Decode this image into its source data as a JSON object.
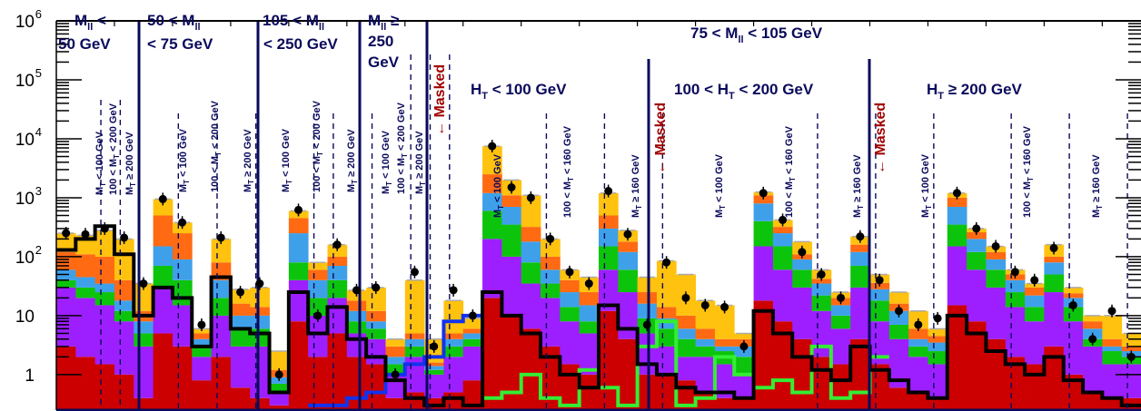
{
  "colors": {
    "red": "#cc0000",
    "purple": "#9d1fff",
    "green": "#0dc40d",
    "blue": "#3fa0ea",
    "orange": "#ff6a13",
    "yellow": "#ffc20e",
    "navy": "#0a0a5c",
    "signal_blue": "#1133ee",
    "signal_green": "#33ee33",
    "masked": "#a00000"
  },
  "axis": {
    "yticks": [
      "1",
      "10",
      "10",
      "10",
      "10",
      "10",
      "10"
    ],
    "ysup": [
      "",
      "",
      "2",
      "3",
      "4",
      "5",
      "6"
    ]
  },
  "regions": {
    "r1": [
      "M",
      "ll",
      " <",
      "50 GeV"
    ],
    "r2": [
      "50 < M",
      "ll",
      "< 75 GeV"
    ],
    "r3": [
      "105 < M",
      "ll",
      "< 250 GeV"
    ],
    "r4": [
      "M",
      "ll",
      " ≥",
      "250",
      "GeV"
    ],
    "r5": [
      "75 < M",
      "ll",
      " < 105 GeV"
    ],
    "ht1": [
      "H",
      "T",
      " < 100 GeV"
    ],
    "ht2": [
      "100 < H",
      "T",
      " < 200 GeV"
    ],
    "ht3": [
      "H",
      "T",
      " ≥ 200 GeV"
    ]
  },
  "masked": [
    "← Masked",
    "← Masked",
    "← Masked"
  ],
  "mt_labels": {
    "a": [
      "M",
      "T",
      " < 100 GeV"
    ],
    "b": [
      "100 < M",
      "T",
      " < 200 GeV"
    ],
    "c": [
      "M",
      "T",
      " ≥ 200 GeV"
    ],
    "d": [
      "100 < M",
      "T",
      " < 160 GeV"
    ],
    "e": [
      "M",
      "T",
      " ≥ 160 GeV"
    ]
  },
  "chart_data": {
    "type": "bar",
    "yscale": "log",
    "ylim": [
      0.25,
      1000000
    ],
    "n_bins": 56,
    "stack_order": [
      "red",
      "purple",
      "green",
      "blue",
      "orange",
      "yellow"
    ],
    "bins": [
      {
        "s": [
          3,
          30,
          40,
          60,
          120,
          250
        ],
        "d": 250,
        "k": 130
      },
      {
        "s": [
          2,
          20,
          30,
          45,
          110,
          230
        ],
        "d": 240,
        "k": 200
      },
      {
        "s": [
          1.5,
          15,
          25,
          35,
          100,
          280
        ],
        "d": 300,
        "k": 330
      },
      {
        "s": [
          1,
          8,
          12,
          18,
          40,
          200
        ],
        "d": 210,
        "k": 110
      },
      {
        "s": [
          0.4,
          3,
          5,
          8,
          12,
          35
        ],
        "d": 35,
        "k": 10
      },
      {
        "s": [
          5,
          30,
          70,
          150,
          500,
          950
        ],
        "d": 950,
        "k": 30
      },
      {
        "s": [
          3,
          15,
          40,
          90,
          250,
          380
        ],
        "d": 380,
        "k": 20
      },
      {
        "s": [
          0.8,
          2,
          3,
          4,
          5,
          6
        ],
        "d": 7,
        "k": 3
      },
      {
        "s": [
          2,
          10,
          20,
          40,
          80,
          200
        ],
        "d": 210,
        "k": 45
      },
      {
        "s": [
          0.6,
          3,
          6,
          10,
          16,
          28
        ],
        "d": 25,
        "k": 6
      },
      {
        "s": [
          0.4,
          3,
          6,
          10,
          14,
          30
        ],
        "d": 35,
        "k": 5
      },
      {
        "s": [
          0.3,
          0.5,
          0.7,
          0.9,
          1.2,
          2.5
        ],
        "d": 1,
        "k": 0.5
      },
      {
        "s": [
          8,
          40,
          80,
          250,
          450,
          600
        ],
        "d": 620,
        "k": 25
      },
      {
        "s": [
          2,
          10,
          20,
          40,
          60,
          80
        ],
        "d": 10,
        "k": 5
      },
      {
        "s": [
          5,
          20,
          40,
          70,
          100,
          160
        ],
        "d": 160,
        "k": 14
      },
      {
        "s": [
          2,
          5,
          8,
          12,
          18,
          27
        ],
        "d": 27,
        "k": 4
      },
      {
        "s": [
          1.5,
          4,
          6,
          8,
          12,
          30
        ],
        "d": 30,
        "k": 2
      },
      {
        "s": [
          0.4,
          1,
          1.5,
          2,
          3,
          4
        ],
        "d": 1,
        "k": 0.8
      },
      {
        "s": [
          0.5,
          2,
          3,
          4,
          5,
          40
        ],
        "d": 55,
        "k": 0.4
      },
      {
        "s": [
          0.4,
          1,
          1.2,
          1.4,
          1.6,
          4
        ],
        "d": 3,
        "k": 0.3
      },
      {
        "s": [
          0.5,
          2,
          3,
          4,
          5,
          18
        ],
        "d": 27,
        "k": 0.4
      },
      {
        "s": [
          0.8,
          3,
          4,
          5,
          6,
          9
        ],
        "d": 10,
        "k": 0.3
      },
      {
        "s": [
          20,
          200,
          600,
          1200,
          2500,
          7500
        ],
        "d": 7500,
        "k": 25
      },
      {
        "s": [
          10,
          100,
          350,
          700,
          1100,
          2000
        ],
        "d": 1500,
        "k": 10
      },
      {
        "s": [
          6,
          35,
          80,
          180,
          320,
          1100
        ],
        "d": 1000,
        "k": 5
      },
      {
        "s": [
          3,
          20,
          35,
          60,
          100,
          200
        ],
        "d": 200,
        "k": 2
      },
      {
        "s": [
          1.5,
          8,
          14,
          25,
          40,
          60
        ],
        "d": 55,
        "k": 1
      },
      {
        "s": [
          1,
          5,
          8,
          15,
          25,
          45
        ],
        "d": 35,
        "k": 0.6
      },
      {
        "s": [
          12,
          60,
          150,
          300,
          500,
          1200
        ],
        "d": 1300,
        "k": 15
      },
      {
        "s": [
          4,
          25,
          60,
          120,
          180,
          280
        ],
        "d": 240,
        "k": 6
      },
      {
        "s": [
          1,
          5,
          9,
          16,
          25,
          45
        ],
        "d": 7,
        "k": 1.5
      },
      {
        "s": [
          1,
          3,
          6,
          9,
          14,
          85
        ],
        "d": 80,
        "k": 1
      },
      {
        "s": [
          0.8,
          2,
          4,
          6,
          10,
          50
        ],
        "d": 20,
        "k": 0.6
      },
      {
        "s": [
          0.5,
          2,
          3,
          4,
          6,
          18
        ],
        "d": 15,
        "k": 0.5
      },
      {
        "s": [
          0.4,
          1.5,
          2.5,
          3,
          4,
          15
        ],
        "d": 14,
        "k": 0.5
      },
      {
        "s": [
          0.4,
          1,
          2,
          3,
          4,
          5
        ],
        "d": 3,
        "k": 0.4
      },
      {
        "s": [
          18,
          150,
          400,
          800,
          1100,
          1250
        ],
        "d": 1200,
        "k": 12
      },
      {
        "s": [
          8,
          60,
          150,
          250,
          320,
          420
        ],
        "d": 420,
        "k": 5
      },
      {
        "s": [
          4,
          30,
          60,
          90,
          110,
          180
        ],
        "d": 120,
        "k": 2
      },
      {
        "s": [
          2,
          12,
          22,
          35,
          42,
          60
        ],
        "d": 50,
        "k": 1.2
      },
      {
        "s": [
          1.5,
          6,
          10,
          15,
          20,
          25
        ],
        "d": 20,
        "k": 0.8
      },
      {
        "s": [
          4,
          30,
          70,
          120,
          160,
          220
        ],
        "d": 220,
        "k": 3
      },
      {
        "s": [
          1.5,
          8,
          18,
          28,
          36,
          50
        ],
        "d": 40,
        "k": 1.2
      },
      {
        "s": [
          0.6,
          4,
          7,
          12,
          16,
          25
        ],
        "d": 12,
        "k": 0.8
      },
      {
        "s": [
          0.5,
          2,
          3,
          4,
          6,
          12
        ],
        "d": 7,
        "k": 0.5
      },
      {
        "s": [
          0.4,
          1.5,
          2.5,
          3.5,
          4.5,
          6
        ],
        "d": 9,
        "k": 0.4
      },
      {
        "s": [
          15,
          150,
          350,
          700,
          1000,
          1200
        ],
        "d": 1200,
        "k": 10
      },
      {
        "s": [
          8,
          60,
          120,
          200,
          260,
          300
        ],
        "d": 300,
        "k": 5
      },
      {
        "s": [
          4,
          30,
          60,
          90,
          120,
          150
        ],
        "d": 150,
        "k": 2.5
      },
      {
        "s": [
          2,
          14,
          25,
          40,
          50,
          60
        ],
        "d": 55,
        "k": 1.5
      },
      {
        "s": [
          1.5,
          8,
          14,
          22,
          30,
          35
        ],
        "d": 40,
        "k": 1
      },
      {
        "s": [
          3,
          25,
          50,
          80,
          100,
          160
        ],
        "d": 140,
        "k": 2
      },
      {
        "s": [
          1,
          8,
          14,
          20,
          24,
          30
        ],
        "d": 15,
        "k": 0.8
      },
      {
        "s": [
          0.5,
          3,
          4,
          6,
          8,
          10
        ],
        "d": 4,
        "k": 0.5
      },
      {
        "s": [
          0.4,
          1.5,
          2.5,
          3,
          4,
          10
        ],
        "d": 12,
        "k": 0.4
      },
      {
        "s": [
          0.4,
          1.5,
          2,
          2.5,
          3,
          5
        ],
        "d": 2,
        "k": 0.3
      }
    ],
    "signal_blue": [
      0.3,
      0.3,
      0.4,
      0.5,
      1,
      1.5,
      2,
      8,
      10
    ],
    "signal_green": [
      0.4,
      0.5,
      1,
      0.4,
      0.3,
      1.2,
      0.6,
      0.3,
      3,
      8,
      0.3,
      0.4,
      2,
      1,
      0.6,
      0.8,
      0.5,
      3,
      0.4,
      0.5,
      2
    ]
  }
}
